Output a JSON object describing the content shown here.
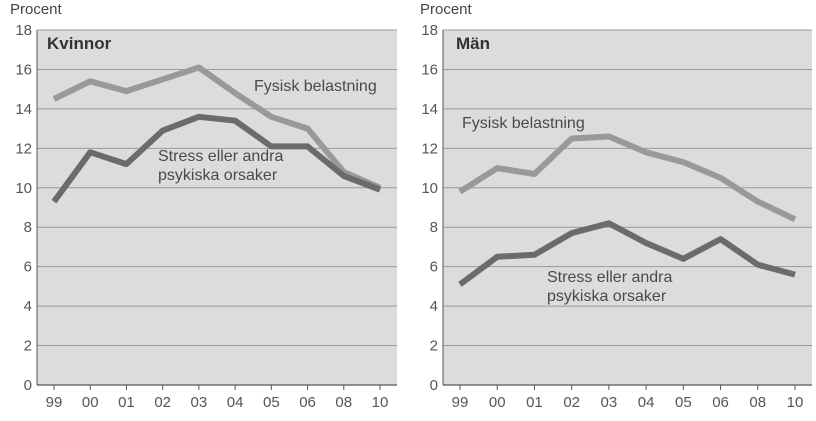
{
  "chart_data": [
    {
      "type": "line",
      "title": "Kvinnor",
      "ylabel": "Procent",
      "ylim": [
        0,
        18
      ],
      "yticks": [
        "0",
        "2",
        "4",
        "6",
        "8",
        "10",
        "12",
        "14",
        "16",
        "18"
      ],
      "categories": [
        "99",
        "00",
        "01",
        "02",
        "03",
        "04",
        "05",
        "06",
        "08",
        "10"
      ],
      "grid": true,
      "series": [
        {
          "name": "Fysisk belastning",
          "color": "#999999",
          "values": [
            14.5,
            15.4,
            14.9,
            15.5,
            16.1,
            14.8,
            13.6,
            13.0,
            10.8,
            10.0
          ]
        },
        {
          "name": "Stress eller andra psykiska orsaker",
          "name_lines": [
            "Stress eller andra",
            "psykiska orsaker"
          ],
          "color": "#6b6b6b",
          "values": [
            9.3,
            11.8,
            11.2,
            12.9,
            13.6,
            13.4,
            12.1,
            12.1,
            10.6,
            9.9
          ]
        }
      ]
    },
    {
      "type": "line",
      "title": "Män",
      "ylabel": "Procent",
      "ylim": [
        0,
        18
      ],
      "yticks": [
        "0",
        "2",
        "4",
        "6",
        "8",
        "10",
        "12",
        "14",
        "16",
        "18"
      ],
      "categories": [
        "99",
        "00",
        "01",
        "02",
        "03",
        "04",
        "05",
        "06",
        "08",
        "10"
      ],
      "grid": true,
      "series": [
        {
          "name": "Fysisk belastning",
          "color": "#999999",
          "values": [
            9.8,
            11.0,
            10.7,
            12.5,
            12.6,
            11.8,
            11.3,
            10.5,
            9.3,
            8.4
          ]
        },
        {
          "name": "Stress eller andra psykiska orsaker",
          "name_lines": [
            "Stress eller andra",
            "psykiska orsaker"
          ],
          "color": "#6b6b6b",
          "values": [
            5.1,
            6.5,
            6.6,
            7.7,
            8.2,
            7.2,
            6.4,
            7.4,
            6.1,
            5.6
          ]
        }
      ]
    }
  ],
  "colors": {
    "plot_background": "#dcdcdc",
    "gridline": "#9a9a9a",
    "axis": "#555555"
  }
}
